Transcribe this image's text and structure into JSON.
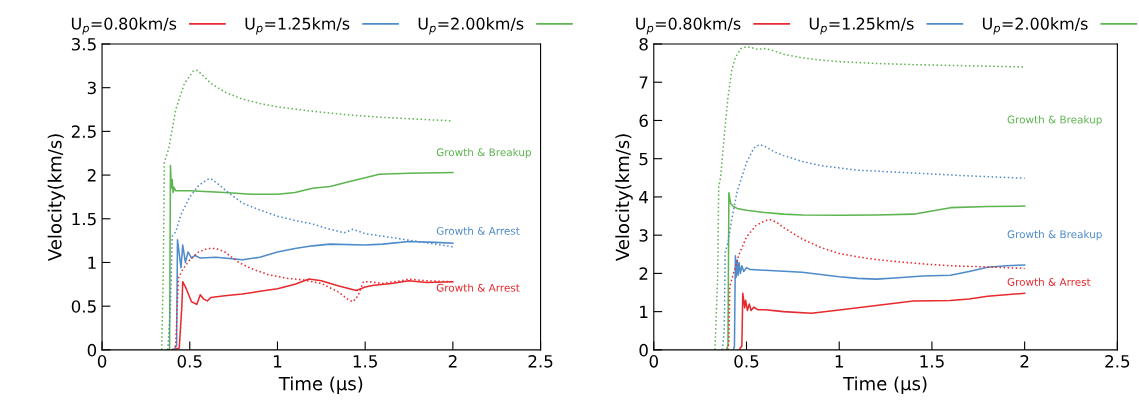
{
  "chart_data": [
    {
      "type": "line",
      "xlabel": "Time (μs)",
      "ylabel": "Velocity(km/s)",
      "xlim": [
        0,
        2.5
      ],
      "xticks": [
        0,
        0.5,
        1,
        1.5,
        2,
        2.5
      ],
      "ylim": [
        0,
        3.5
      ],
      "yticks": [
        0,
        0.5,
        1,
        1.5,
        2,
        2.5,
        3,
        3.5
      ],
      "grid": false,
      "legend": "top",
      "marker": "none",
      "series": [
        {
          "name": "U$_{p}$=0.80km/s",
          "color": "#e8292e",
          "line_style": "solid",
          "x": [
            0.4,
            0.44,
            0.455,
            0.46,
            0.48,
            0.51,
            0.54,
            0.56,
            0.58,
            0.6,
            0.62,
            0.7,
            0.8,
            0.9,
            1.0,
            1.1,
            1.18,
            1.25,
            1.35,
            1.45,
            1.5,
            1.55,
            1.65,
            1.75,
            1.85,
            2.0
          ],
          "values": [
            0,
            0.02,
            0.5,
            0.78,
            0.7,
            0.55,
            0.52,
            0.63,
            0.58,
            0.56,
            0.6,
            0.62,
            0.64,
            0.67,
            0.7,
            0.75,
            0.81,
            0.79,
            0.73,
            0.68,
            0.72,
            0.74,
            0.76,
            0.79,
            0.77,
            0.78
          ]
        },
        {
          "name": "U$_{p}$=1.25km/s",
          "color": "#4f8bc9",
          "line_style": "solid",
          "x": [
            0.41,
            0.425,
            0.43,
            0.45,
            0.46,
            0.475,
            0.49,
            0.51,
            0.53,
            0.56,
            0.65,
            0.8,
            0.9,
            1.0,
            1.1,
            1.2,
            1.3,
            1.5,
            1.6,
            1.75,
            1.9,
            2.0
          ],
          "values": [
            0,
            0.05,
            1.26,
            0.94,
            1.2,
            1.0,
            1.12,
            1.05,
            1.08,
            1.05,
            1.06,
            1.03,
            1.06,
            1.12,
            1.16,
            1.19,
            1.21,
            1.2,
            1.21,
            1.24,
            1.23,
            1.22
          ]
        },
        {
          "name": "U$_{p}$=2.00km/s",
          "color": "#5cb54f",
          "line_style": "solid",
          "x": [
            0.37,
            0.385,
            0.39,
            0.395,
            0.4,
            0.405,
            0.41,
            0.42,
            0.5,
            0.7,
            0.85,
            1.0,
            1.1,
            1.2,
            1.3,
            1.4,
            1.5,
            1.58,
            1.75,
            2.0
          ],
          "values": [
            0,
            0,
            2.11,
            1.85,
            1.95,
            1.8,
            1.86,
            1.82,
            1.82,
            1.8,
            1.78,
            1.78,
            1.8,
            1.85,
            1.87,
            1.92,
            1.97,
            2.01,
            2.02,
            2.03
          ]
        },
        {
          "color": "#e8292e",
          "line_style": "dotted",
          "x": [
            0.4,
            0.42,
            0.435,
            0.46,
            0.5,
            0.55,
            0.6,
            0.65,
            0.7,
            0.78,
            0.85,
            0.95,
            1.05,
            1.15,
            1.25,
            1.35,
            1.4,
            1.43,
            1.46,
            1.49,
            1.52,
            1.6,
            1.7,
            1.75,
            1.85,
            2.0
          ],
          "values": [
            0,
            0.05,
            0.82,
            0.92,
            1.03,
            1.12,
            1.16,
            1.16,
            1.12,
            1.0,
            0.93,
            0.86,
            0.82,
            0.8,
            0.76,
            0.66,
            0.58,
            0.55,
            0.62,
            0.78,
            0.78,
            0.76,
            0.79,
            0.81,
            0.79,
            0.78
          ]
        },
        {
          "color": "#4f8bc9",
          "line_style": "dotted",
          "x": [
            0.375,
            0.39,
            0.4,
            0.42,
            0.45,
            0.5,
            0.55,
            0.6,
            0.62,
            0.66,
            0.72,
            0.8,
            0.9,
            1.0,
            1.1,
            1.2,
            1.3,
            1.38,
            1.43,
            1.5,
            1.6,
            1.7,
            1.8,
            1.9,
            2.0
          ],
          "values": [
            0,
            0.5,
            1.3,
            1.35,
            1.55,
            1.75,
            1.88,
            1.95,
            1.96,
            1.9,
            1.8,
            1.68,
            1.6,
            1.53,
            1.48,
            1.44,
            1.38,
            1.34,
            1.38,
            1.33,
            1.3,
            1.27,
            1.24,
            1.21,
            1.18
          ]
        },
        {
          "color": "#5cb54f",
          "line_style": "dotted",
          "x": [
            0.34,
            0.35,
            0.355,
            0.38,
            0.42,
            0.47,
            0.52,
            0.54,
            0.57,
            0.62,
            0.7,
            0.8,
            0.9,
            1.0,
            1.2,
            1.4,
            1.6,
            1.8,
            2.0
          ],
          "values": [
            0,
            1.0,
            2.15,
            2.3,
            2.75,
            3.05,
            3.19,
            3.2,
            3.15,
            3.05,
            2.95,
            2.87,
            2.82,
            2.78,
            2.73,
            2.69,
            2.66,
            2.64,
            2.62
          ]
        }
      ],
      "annotations": [
        "Growth & Breakup",
        "Growth & Arrest",
        "Growth & Arrest"
      ]
    },
    {
      "type": "line",
      "xlabel": "Time (μs)",
      "ylabel": "Velocity(km/s)",
      "xlim": [
        0,
        2.5
      ],
      "xticks": [
        0,
        0.5,
        1,
        1.5,
        2,
        2.5
      ],
      "ylim": [
        0,
        8
      ],
      "yticks": [
        0,
        1,
        2,
        3,
        4,
        5,
        6,
        7,
        8
      ],
      "grid": false,
      "legend": "top",
      "marker": "none",
      "series": [
        {
          "name": "U$_{p}$=0.80km/s",
          "color": "#e8292e",
          "line_style": "solid",
          "x": [
            0.46,
            0.475,
            0.48,
            0.49,
            0.495,
            0.505,
            0.515,
            0.525,
            0.54,
            0.56,
            0.6,
            0.7,
            0.85,
            1.0,
            1.2,
            1.4,
            1.6,
            1.7,
            1.8,
            2.0
          ],
          "values": [
            0,
            0.1,
            1.48,
            1.1,
            1.3,
            1.03,
            1.2,
            1.03,
            1.12,
            1.05,
            1.05,
            1.0,
            0.96,
            1.04,
            1.16,
            1.28,
            1.29,
            1.33,
            1.4,
            1.48
          ]
        },
        {
          "name": "U$_{p}$=1.25km/s",
          "color": "#4f8bc9",
          "line_style": "solid",
          "x": [
            0.43,
            0.435,
            0.44,
            0.445,
            0.45,
            0.455,
            0.46,
            0.467,
            0.475,
            0.485,
            0.5,
            0.52,
            0.6,
            0.8,
            0.9,
            1.0,
            1.1,
            1.2,
            1.3,
            1.45,
            1.6,
            1.7,
            1.8,
            1.9,
            2.0
          ],
          "values": [
            0,
            0.1,
            2.46,
            1.9,
            2.35,
            1.95,
            2.28,
            2.0,
            2.2,
            2.05,
            2.15,
            2.1,
            2.08,
            2.03,
            1.97,
            1.91,
            1.87,
            1.85,
            1.88,
            1.93,
            1.95,
            2.05,
            2.16,
            2.2,
            2.22
          ]
        },
        {
          "name": "U$_{p}$=2.00km/s",
          "color": "#5cb54f",
          "line_style": "solid",
          "x": [
            0.39,
            0.4,
            0.405,
            0.415,
            0.43,
            0.45,
            0.5,
            0.6,
            0.7,
            0.8,
            1.0,
            1.2,
            1.4,
            1.5,
            1.6,
            1.8,
            2.0
          ],
          "values": [
            0,
            0.1,
            4.11,
            3.82,
            3.75,
            3.7,
            3.65,
            3.59,
            3.55,
            3.53,
            3.52,
            3.53,
            3.55,
            3.63,
            3.72,
            3.75,
            3.76
          ]
        },
        {
          "color": "#e8292e",
          "line_style": "dotted",
          "x": [
            0.4,
            0.405,
            0.41,
            0.43,
            0.46,
            0.5,
            0.55,
            0.6,
            0.63,
            0.66,
            0.7,
            0.8,
            0.9,
            1.0,
            1.1,
            1.2,
            1.35,
            1.5,
            1.65,
            1.8,
            2.0
          ],
          "values": [
            0,
            0.2,
            1.67,
            2.0,
            2.5,
            2.95,
            3.25,
            3.38,
            3.4,
            3.35,
            3.2,
            2.9,
            2.68,
            2.52,
            2.43,
            2.36,
            2.29,
            2.23,
            2.19,
            2.17,
            2.13
          ]
        },
        {
          "color": "#4f8bc9",
          "line_style": "dotted",
          "x": [
            0.37,
            0.38,
            0.385,
            0.4,
            0.42,
            0.45,
            0.5,
            0.54,
            0.57,
            0.6,
            0.65,
            0.7,
            0.8,
            0.9,
            1.0,
            1.1,
            1.3,
            1.5,
            1.7,
            1.85,
            2.0
          ],
          "values": [
            0,
            0.5,
            2.55,
            2.8,
            3.4,
            4.15,
            4.9,
            5.28,
            5.37,
            5.32,
            5.18,
            5.08,
            4.93,
            4.82,
            4.76,
            4.7,
            4.65,
            4.6,
            4.55,
            4.52,
            4.49
          ]
        },
        {
          "color": "#5cb54f",
          "line_style": "dotted",
          "x": [
            0.33,
            0.345,
            0.35,
            0.36,
            0.38,
            0.4,
            0.42,
            0.44,
            0.47,
            0.5,
            0.53,
            0.56,
            0.6,
            0.65,
            0.7,
            0.8,
            0.9,
            1.0,
            1.2,
            1.4,
            1.6,
            1.8,
            2.0
          ],
          "values": [
            0,
            2.0,
            4.27,
            4.5,
            5.6,
            6.6,
            7.3,
            7.65,
            7.88,
            7.93,
            7.9,
            7.86,
            7.88,
            7.82,
            7.73,
            7.64,
            7.58,
            7.54,
            7.49,
            7.46,
            7.44,
            7.42,
            7.4
          ]
        }
      ],
      "annotations": [
        "Growth & Breakup",
        "Growth & Breakup",
        "Growth & Arrest"
      ]
    }
  ]
}
